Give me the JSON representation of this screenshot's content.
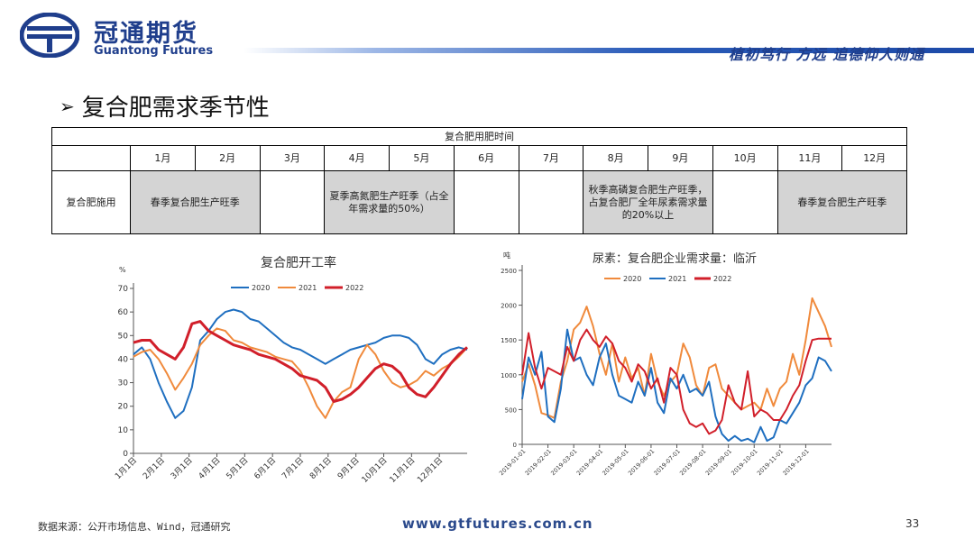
{
  "header": {
    "brand_cn": "冠通期货",
    "brand_en": "Guantong Futures",
    "slogan": "植初笃行 方远   追德仰人则通",
    "colors": {
      "brand": "#1f3e8c"
    }
  },
  "title": {
    "text": "复合肥需求季节性"
  },
  "table": {
    "caption": "复合肥用肥时间",
    "months": [
      "1月",
      "2月",
      "3月",
      "4月",
      "5月",
      "6月",
      "7月",
      "8月",
      "9月",
      "10月",
      "11月",
      "12月"
    ],
    "row_label": "复合肥施用",
    "spring_label": "春季复合肥生产旺季",
    "summer_label": "夏季高氮肥生产旺季（占全年需求量的50%）",
    "autumn_label": "秋季高磷复合肥生产旺季，占复合肥厂全年尿素需求量的20%以上",
    "winter_label": "春季复合肥生产旺季",
    "colors": {
      "peak": "#d4d4d4"
    }
  },
  "chart_data": [
    {
      "type": "line",
      "title": "复合肥开工率",
      "ylabel": "%",
      "ylim": [
        0,
        70
      ],
      "yticks": [
        "0",
        "10",
        "20",
        "30",
        "40",
        "50",
        "60",
        "70"
      ],
      "categories": [
        "1月1日",
        "2月1日",
        "3月1日",
        "4月1日",
        "5月1日",
        "6月1日",
        "7月1日",
        "8月1日",
        "9月1日",
        "10月1日",
        "11月1日",
        "12月1日"
      ],
      "legend": "top-center",
      "series": [
        {
          "name": "2020",
          "color": "#1f6fc0",
          "x": [
            0,
            0.3,
            0.6,
            0.9,
            1.2,
            1.5,
            1.8,
            2.1,
            2.4,
            2.7,
            3,
            3.3,
            3.6,
            3.9,
            4.2,
            4.5,
            4.8,
            5.1,
            5.4,
            5.7,
            6,
            6.3,
            6.6,
            6.9,
            7.2,
            7.5,
            7.8,
            8.1,
            8.4,
            8.7,
            9,
            9.3,
            9.6,
            9.9,
            10.2,
            10.5,
            10.8,
            11.1,
            11.4,
            11.7,
            12
          ],
          "values": [
            42,
            45,
            40,
            30,
            22,
            15,
            18,
            28,
            48,
            52,
            57,
            60,
            61,
            60,
            57,
            56,
            53,
            50,
            47,
            45,
            44,
            42,
            40,
            38,
            40,
            42,
            44,
            45,
            46,
            47,
            49,
            50,
            50,
            49,
            46,
            40,
            38,
            42,
            44,
            45,
            44
          ]
        },
        {
          "name": "2021",
          "color": "#f08a3c",
          "x": [
            0,
            0.3,
            0.6,
            0.9,
            1.2,
            1.5,
            1.8,
            2.1,
            2.4,
            2.7,
            3,
            3.3,
            3.6,
            3.9,
            4.2,
            4.5,
            4.8,
            5.1,
            5.4,
            5.7,
            6,
            6.3,
            6.6,
            6.9,
            7.2,
            7.5,
            7.8,
            8.1,
            8.4,
            8.7,
            9,
            9.3,
            9.6,
            9.9,
            10.2,
            10.5,
            10.8,
            11.1,
            11.4,
            11.7,
            12
          ],
          "values": [
            41,
            43,
            44,
            40,
            34,
            27,
            32,
            38,
            46,
            50,
            53,
            52,
            48,
            47,
            45,
            44,
            43,
            41,
            40,
            39,
            35,
            28,
            20,
            15,
            22,
            26,
            28,
            40,
            46,
            42,
            35,
            30,
            28,
            29,
            31,
            35,
            33,
            36,
            38,
            41,
            45
          ]
        },
        {
          "name": "2022",
          "color": "#d11f2a",
          "x": [
            0,
            0.3,
            0.6,
            0.9,
            1.2,
            1.5,
            1.8,
            2.1,
            2.4,
            2.7,
            3,
            3.3,
            3.6,
            3.9,
            4.2,
            4.5,
            4.8,
            5.1,
            5.4,
            5.7,
            6,
            6.3,
            6.6,
            6.9,
            7.2,
            7.5,
            7.8,
            8.1,
            8.4,
            8.7,
            9,
            9.3,
            9.6,
            9.9,
            10.2,
            10.5,
            10.8,
            11.1,
            11.4,
            11.7,
            12
          ],
          "values": [
            47,
            48,
            48,
            44,
            42,
            40,
            45,
            55,
            56,
            52,
            50,
            48,
            46,
            45,
            44,
            42,
            41,
            40,
            38,
            36,
            33,
            32,
            31,
            28,
            22,
            23,
            25,
            28,
            32,
            36,
            38,
            37,
            34,
            28,
            25,
            24,
            28,
            33,
            38,
            42,
            45
          ]
        }
      ]
    },
    {
      "type": "line",
      "title": "尿素：复合肥企业需求量：临沂",
      "ylabel": "吨",
      "ylim": [
        0,
        2500
      ],
      "yticks": [
        "0",
        "500",
        "1000",
        "1500",
        "2000",
        "2500"
      ],
      "categories": [
        "2019-01-01",
        "2019-02-01",
        "2019-03-01",
        "2019-04-01",
        "2019-05-01",
        "2019-06-01",
        "2019-07-01",
        "2019-08-01",
        "2019-09-01",
        "2019-10-01",
        "2019-11-01",
        "2019-12-01"
      ],
      "legend": "top-center",
      "series": [
        {
          "name": "2020",
          "color": "#f08a3c",
          "x": [
            0,
            0.25,
            0.5,
            0.75,
            1,
            1.25,
            1.5,
            1.75,
            2,
            2.25,
            2.5,
            2.75,
            3,
            3.25,
            3.5,
            3.75,
            4,
            4.25,
            4.5,
            4.75,
            5,
            5.25,
            5.5,
            5.75,
            6,
            6.25,
            6.5,
            6.75,
            7,
            7.25,
            7.5,
            7.75,
            8,
            8.25,
            8.5,
            8.75,
            9,
            9.25,
            9.5,
            9.75,
            10,
            10.25,
            10.5,
            10.75,
            11,
            11.25,
            11.5,
            11.75,
            12
          ],
          "values": [
            900,
            1150,
            850,
            450,
            420,
            380,
            900,
            1200,
            1650,
            1750,
            1980,
            1700,
            1300,
            1000,
            1450,
            900,
            1250,
            950,
            1100,
            700,
            1300,
            900,
            700,
            900,
            1000,
            1450,
            1250,
            850,
            700,
            1100,
            1150,
            800,
            700,
            600,
            500,
            550,
            600,
            500,
            800,
            550,
            800,
            900,
            1300,
            1000,
            1500,
            2100,
            1900,
            1700,
            1400
          ]
        },
        {
          "name": "2021",
          "color": "#1f6fc0",
          "x": [
            0,
            0.25,
            0.5,
            0.75,
            1,
            1.25,
            1.5,
            1.75,
            2,
            2.25,
            2.5,
            2.75,
            3,
            3.25,
            3.5,
            3.75,
            4,
            4.25,
            4.5,
            4.75,
            5,
            5.25,
            5.5,
            5.75,
            6,
            6.25,
            6.5,
            6.75,
            7,
            7.25,
            7.5,
            7.75,
            8,
            8.25,
            8.5,
            8.75,
            9,
            9.25,
            9.5,
            9.75,
            10,
            10.25,
            10.5,
            10.75,
            11,
            11.25,
            11.5,
            11.75,
            12
          ],
          "values": [
            650,
            1250,
            1000,
            1330,
            400,
            320,
            800,
            1650,
            1200,
            1250,
            1000,
            850,
            1250,
            1450,
            1000,
            700,
            650,
            600,
            900,
            700,
            1100,
            600,
            450,
            950,
            800,
            1000,
            750,
            800,
            700,
            900,
            400,
            150,
            50,
            120,
            50,
            80,
            30,
            250,
            50,
            100,
            350,
            300,
            450,
            600,
            850,
            950,
            1250,
            1200,
            1050
          ]
        },
        {
          "name": "2022",
          "color": "#d11f2a",
          "x": [
            0,
            0.25,
            0.5,
            0.75,
            1,
            1.25,
            1.5,
            1.75,
            2,
            2.25,
            2.5,
            2.75,
            3,
            3.25,
            3.5,
            3.75,
            4,
            4.25,
            4.5,
            4.75,
            5,
            5.25,
            5.5,
            5.75,
            6,
            6.25,
            6.5,
            6.75,
            7,
            7.25,
            7.5,
            7.75,
            8,
            8.25,
            8.5,
            8.75,
            9,
            9.25,
            9.5,
            9.75,
            10,
            10.25,
            10.5,
            10.75,
            11,
            11.25,
            11.5,
            11.75,
            12
          ],
          "values": [
            1000,
            1600,
            1100,
            800,
            1100,
            1050,
            1000,
            1400,
            1200,
            1500,
            1650,
            1500,
            1400,
            1550,
            1450,
            1200,
            1100,
            900,
            1150,
            1050,
            800,
            950,
            600,
            1100,
            1000,
            500,
            300,
            250,
            300,
            150,
            200,
            350,
            850,
            600,
            500,
            1050,
            400,
            500,
            450,
            350,
            350,
            500,
            700,
            850,
            1200,
            1500,
            1520,
            1520,
            1520
          ]
        }
      ]
    }
  ],
  "footer": {
    "source": "数据来源：公开市场信息、Wind，冠通研究",
    "url": "www.gtfutures.com.cn",
    "page": "33"
  }
}
